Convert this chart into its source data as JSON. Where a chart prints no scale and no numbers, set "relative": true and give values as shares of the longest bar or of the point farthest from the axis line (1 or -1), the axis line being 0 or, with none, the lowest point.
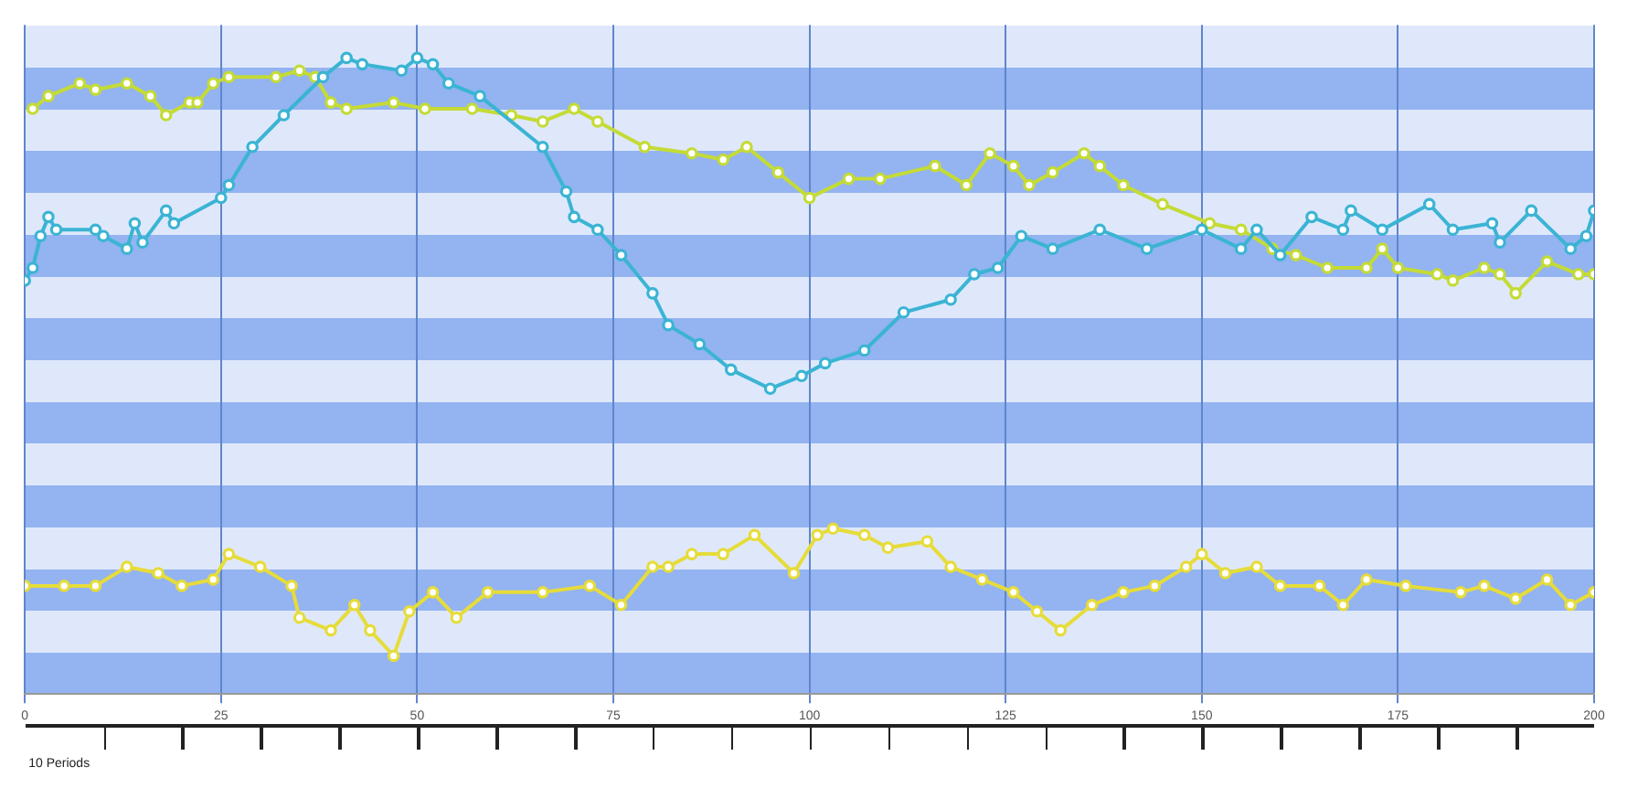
{
  "chart_data": {
    "type": "line",
    "relative": true,
    "marker": "circle",
    "grid": "x",
    "legend": false,
    "xlim": [
      0,
      200
    ],
    "xticks": [
      0,
      25,
      50,
      75,
      100,
      125,
      150,
      175,
      200
    ],
    "annotations": [
      "10 Periods"
    ],
    "series": [
      {
        "color": "#3bb4d4",
        "x": [
          0,
          1,
          2,
          3,
          4,
          9,
          10,
          13,
          14,
          15,
          18,
          19,
          25,
          26,
          29,
          33,
          38,
          41,
          43,
          48,
          50,
          52,
          54,
          58,
          66,
          69,
          70,
          73,
          76,
          80,
          82,
          86,
          90,
          95,
          99,
          102,
          107,
          112,
          118,
          121,
          124,
          127,
          131,
          137,
          143,
          150,
          155,
          157,
          160,
          164,
          168,
          169,
          173,
          179,
          182,
          187,
          188,
          192,
          197,
          199,
          200
        ],
        "values": [
          0.65,
          0.67,
          0.72,
          0.75,
          0.73,
          0.73,
          0.72,
          0.7,
          0.74,
          0.71,
          0.76,
          0.74,
          0.78,
          0.8,
          0.86,
          0.91,
          0.97,
          1,
          0.99,
          0.98,
          1,
          0.99,
          0.96,
          0.94,
          0.86,
          0.79,
          0.75,
          0.73,
          0.69,
          0.63,
          0.58,
          0.55,
          0.51,
          0.48,
          0.5,
          0.52,
          0.54,
          0.6,
          0.62,
          0.66,
          0.67,
          0.72,
          0.7,
          0.73,
          0.7,
          0.73,
          0.7,
          0.73,
          0.69,
          0.75,
          0.73,
          0.76,
          0.73,
          0.77,
          0.73,
          0.74,
          0.71,
          0.76,
          0.7,
          0.72,
          0.76
        ]
      },
      {
        "color": "#c4db36",
        "x": [
          1,
          3,
          7,
          9,
          13,
          16,
          18,
          21,
          22,
          24,
          26,
          32,
          35,
          37,
          39,
          41,
          47,
          51,
          57,
          62,
          66,
          70,
          73,
          79,
          85,
          89,
          92,
          96,
          100,
          105,
          109,
          116,
          120,
          123,
          126,
          128,
          131,
          135,
          137,
          140,
          145,
          151,
          155,
          159,
          162,
          166,
          171,
          173,
          175,
          180,
          182,
          186,
          188,
          190,
          194,
          198,
          200
        ],
        "values": [
          0.92,
          0.94,
          0.96,
          0.95,
          0.96,
          0.94,
          0.91,
          0.93,
          0.93,
          0.96,
          0.97,
          0.97,
          0.98,
          0.97,
          0.93,
          0.92,
          0.93,
          0.92,
          0.92,
          0.91,
          0.9,
          0.92,
          0.9,
          0.86,
          0.85,
          0.84,
          0.86,
          0.82,
          0.78,
          0.81,
          0.81,
          0.83,
          0.8,
          0.85,
          0.83,
          0.8,
          0.82,
          0.85,
          0.83,
          0.8,
          0.77,
          0.74,
          0.73,
          0.7,
          0.69,
          0.67,
          0.67,
          0.7,
          0.67,
          0.66,
          0.65,
          0.67,
          0.66,
          0.63,
          0.68,
          0.66,
          0.66
        ]
      },
      {
        "color": "#e6dc3a",
        "x": [
          0,
          5,
          9,
          13,
          17,
          20,
          24,
          26,
          30,
          34,
          35,
          39,
          42,
          44,
          47,
          49,
          52,
          55,
          59,
          66,
          72,
          76,
          80,
          82,
          85,
          89,
          93,
          98,
          101,
          103,
          107,
          110,
          115,
          118,
          122,
          126,
          129,
          132,
          136,
          140,
          144,
          148,
          150,
          153,
          157,
          160,
          165,
          168,
          171,
          176,
          183,
          186,
          190,
          194,
          197,
          200
        ],
        "values": [
          0.17,
          0.17,
          0.17,
          0.2,
          0.19,
          0.17,
          0.18,
          0.22,
          0.2,
          0.17,
          0.12,
          0.1,
          0.14,
          0.1,
          0.06,
          0.13,
          0.16,
          0.12,
          0.16,
          0.16,
          0.17,
          0.14,
          0.2,
          0.2,
          0.22,
          0.22,
          0.25,
          0.19,
          0.25,
          0.26,
          0.25,
          0.23,
          0.24,
          0.2,
          0.18,
          0.16,
          0.13,
          0.1,
          0.14,
          0.16,
          0.17,
          0.2,
          0.22,
          0.19,
          0.2,
          0.17,
          0.17,
          0.14,
          0.18,
          0.17,
          0.16,
          0.17,
          0.15,
          0.18,
          0.14,
          0.16
        ]
      }
    ]
  }
}
